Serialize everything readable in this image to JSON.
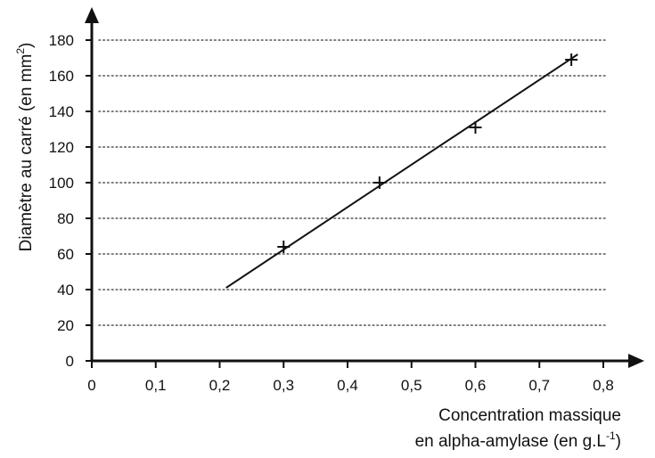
{
  "chart_data": {
    "type": "scatter",
    "title": "",
    "xlabel_line1": "Concentration massique",
    "xlabel_line2_main": "en alpha-amylase (en g.L",
    "xlabel_line2_sup": "-1",
    "xlabel_line2_end": ")",
    "ylabel_main": "Diamètre au carré (en mm",
    "ylabel_sup": "2",
    "ylabel_end": ")",
    "xlim": [
      0,
      0.8
    ],
    "ylim": [
      0,
      180
    ],
    "x_ticks": [
      0,
      0.1,
      0.2,
      0.3,
      0.4,
      0.5,
      0.6,
      0.7,
      0.8
    ],
    "x_tick_labels": [
      "0",
      "0,1",
      "0,2",
      "0,3",
      "0,4",
      "0,5",
      "0,6",
      "0,7",
      "0,8"
    ],
    "y_ticks": [
      0,
      20,
      40,
      60,
      80,
      100,
      120,
      140,
      160,
      180
    ],
    "y_tick_labels": [
      "0",
      "20",
      "40",
      "60",
      "80",
      "100",
      "120",
      "140",
      "160",
      "180"
    ],
    "grid": "horizontal dotted",
    "points": [
      {
        "x": 0.3,
        "y": 64
      },
      {
        "x": 0.45,
        "y": 100
      },
      {
        "x": 0.6,
        "y": 131
      },
      {
        "x": 0.75,
        "y": 169
      }
    ],
    "trend_line": {
      "x_start": 0.21,
      "y_start": 41,
      "x_end": 0.76,
      "y_end": 172
    },
    "colors": {
      "ink": "#111111",
      "grid": "#555555"
    }
  }
}
